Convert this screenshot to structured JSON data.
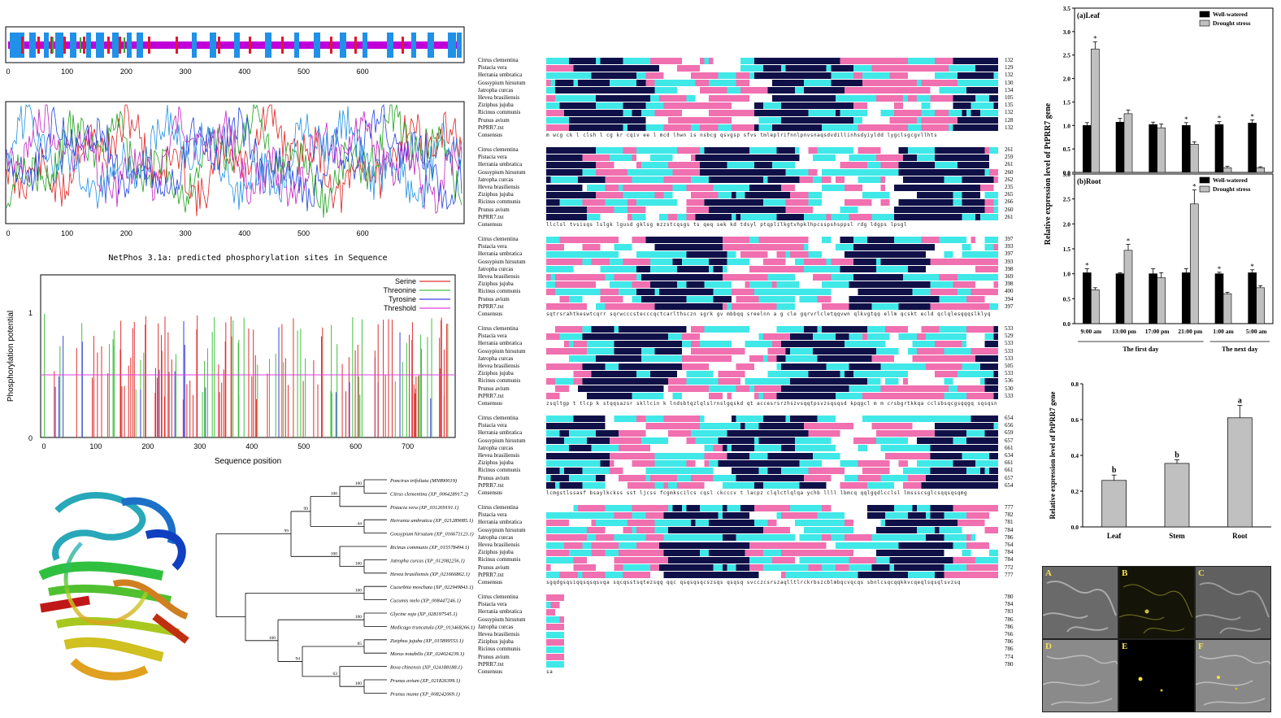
{
  "domain_map": {
    "ticks": [
      "0",
      "100",
      "200",
      "300",
      "400",
      "500",
      "600"
    ],
    "colors": {
      "track": "#c000d8",
      "blue": "#2090e8",
      "red": "#e01830",
      "green": "#40a040"
    }
  },
  "conservation_plot": {
    "ticks": [
      "0",
      "100",
      "200",
      "300",
      "400",
      "500",
      "600"
    ]
  },
  "netphos": {
    "title": "NetPhos 3.1a: predicted phosphorylation sites in Sequence",
    "xlabel": "Sequence position",
    "ylabel": "Phosphorylation potential",
    "y_ticks": [
      "0",
      "1"
    ],
    "x_ticks": [
      "0",
      "100",
      "200",
      "300",
      "400",
      "500",
      "600",
      "700"
    ],
    "legend": [
      {
        "label": "Serine",
        "color": "#e03030"
      },
      {
        "label": "Threonine",
        "color": "#40c040"
      },
      {
        "label": "Tyrosine",
        "color": "#4040e0"
      },
      {
        "label": "Threshold",
        "color": "#e040e0"
      }
    ],
    "threshold": 0.5
  },
  "alignment": {
    "species": [
      "Citrus clementina",
      "Pistacia vera",
      "Herrania umbratica",
      "Gossypium hirsutum",
      "Jatropha curcas",
      "Hevea brasiliensis",
      "Ziziphus jujuba",
      "Ricinus communis",
      "Prunus avium",
      "PtPRR7.txt"
    ],
    "consensus_label": "Consensus",
    "blocks": [
      {
        "nums": [
          "132",
          "129",
          "132",
          "130",
          "134",
          "105",
          "135",
          "132",
          "128",
          "132"
        ]
      },
      {
        "nums": [
          "261",
          "259",
          "261",
          "260",
          "262",
          "235",
          "265",
          "266",
          "260",
          "261"
        ]
      },
      {
        "nums": [
          "397",
          "393",
          "397",
          "393",
          "398",
          "369",
          "398",
          "400",
          "394",
          "397"
        ]
      },
      {
        "nums": [
          "533",
          "529",
          "533",
          "533",
          "533",
          "505",
          "533",
          "536",
          "530",
          "533"
        ]
      },
      {
        "nums": [
          "654",
          "656",
          "659",
          "657",
          "661",
          "634",
          "661",
          "661",
          "657",
          "654"
        ]
      },
      {
        "nums": [
          "777",
          "782",
          "781",
          "784",
          "786",
          "764",
          "784",
          "784",
          "772",
          "777"
        ]
      },
      {
        "nums": [
          "780",
          "784",
          "783",
          "786",
          "786",
          "766",
          "786",
          "786",
          "774",
          "780"
        ]
      }
    ],
    "consensus_strings": [
      "m wcg ck l clsh l cg kr cqiv ee   l mcd lhwn is nsbcg  qsvgsp sfvs tmleplrifnnlpnvsnaqsdvdillinhsdyiyldd lygclsgcgvllhts",
      "llclsl tvsisqs lslgk lgusd  gklsg  mzzstcqsgs ts qeq sek  kd tdsyl ptqplilkgtvhpklhpcsspshsppsl rdg ldgps  lpsgl",
      "sqtrsrahtkeswtcqrr sqrwcccstecccqctcarlthsczn sgrk  gv mbbqq sreelnn a g  cle gqrvrlcletqqvwn qlkvgtqq ellm qcskt ecld qclqlesqqqslklyq",
      "zsqltgp t  tlcp k stqqsazsr skllcin k lndsbtqzlqlslrnslgqskd qt  accesrsrzhszvsqqtpsvzsqsqsd kpqgcl m m  crsbgrtkkqa cclsbsqcgsqqgq sqsqsn",
      "lcmgstlssasf bsaylkckss sst    ljcss fcgmkscilcs cqsl ckcccv  t  lacpz  clqlctlqlqa ychb  llll lbmcq      qqlgqdlcclsl  lmssscsglcsqqsqsqmg",
      "sgqdgsqsiqqsqsqsvqa    sqcqsstsqtezsqq qqc   qsqsqsqcszsqs  qsqsq    svcczcsrszaqlltlrckrbszcblmbqcvqcqs sbnlcsqcqqkkvcqeqlsqsqlsvzsq",
      "sa"
    ]
  },
  "tree": {
    "taxa": [
      "Poncirus trifoliata (MN890019)",
      "Citrus clementina (XP_006428917.2)",
      "Pistacia vera (XP_031269191.1)",
      "Herrania umbratica (XP_021289085.1)",
      "Gossypium hirsutum (XP_016671123.1)",
      "Ricinus communis (XP_015578494.1)",
      "Jatropha curcas (XP_012082256.1)",
      "Hevea brasiliensis (XP_021666862.1)",
      "Cucurbita moschata (XP_022949843.1)",
      "Cucumis melo (XP_008447246.1)",
      "Glycine soja (XP_028197545.1)",
      "Medicago truncatula (XP_013468266.1)",
      "Ziziphus jujuba (XP_015899553.1)",
      "Morus notabilis (XP_024024239.1)",
      "Rosa chinensis (XP_024188188.1)",
      "Prunus avium (XP_021826399.1)",
      "Prunus mume (XP_008242069.1)"
    ],
    "bootstraps": [
      "100",
      "100",
      "44",
      "99",
      "100",
      "100",
      "99",
      "100",
      "100",
      "85",
      "100",
      "63",
      "94",
      "100",
      "100"
    ]
  },
  "chart_data": [
    {
      "type": "bar",
      "title": "(a)Leaf",
      "ylabel": "Relative expression level of PtPRR7 gene",
      "ylim": [
        0,
        3.5
      ],
      "yticks": [
        "0.0",
        "0.5",
        "1.0",
        "1.5",
        "2.0",
        "2.5",
        "3.0",
        "3.5"
      ],
      "categories": [
        "9:00 am",
        "13:00 pm",
        "17:00 pm",
        "21:00 pm",
        "1:00 am",
        "5:00 am"
      ],
      "series": [
        {
          "name": "Well-watered",
          "color": "#000000",
          "values": [
            1.0,
            1.07,
            1.02,
            1.0,
            1.02,
            1.05
          ],
          "errors": [
            0.06,
            0.08,
            0.05,
            0.06,
            0.06,
            0.07
          ]
        },
        {
          "name": "Drought stress",
          "color": "#c0c0c0",
          "values": [
            2.63,
            1.25,
            0.95,
            0.6,
            0.1,
            0.1
          ],
          "errors": [
            0.15,
            0.08,
            0.08,
            0.05,
            0.03,
            0.02
          ]
        }
      ],
      "stars_on": [
        [
          0,
          1
        ],
        [
          3,
          0
        ],
        [
          4,
          0
        ],
        [
          5,
          0
        ]
      ],
      "legend_position": "top-right"
    },
    {
      "type": "bar",
      "title": "(b)Root",
      "ylim": [
        0,
        3.0
      ],
      "yticks": [
        "0.0",
        "0.5",
        "1.0",
        "1.5",
        "2.0",
        "2.5",
        "3.0"
      ],
      "categories": [
        "9:00 am",
        "13:00 pm",
        "17:00 pm",
        "21:00 pm",
        "1:00 am",
        "5:00 am"
      ],
      "groups": [
        "The first day",
        "The next day"
      ],
      "series": [
        {
          "name": "Well-watered",
          "color": "#000000",
          "values": [
            1.02,
            1.0,
            1.0,
            1.02,
            1.0,
            1.02
          ],
          "errors": [
            0.08,
            0.02,
            0.1,
            0.08,
            0.03,
            0.06
          ]
        },
        {
          "name": "Drought stress",
          "color": "#c0c0c0",
          "values": [
            0.68,
            1.47,
            0.92,
            2.4,
            0.6,
            0.72
          ],
          "errors": [
            0.04,
            0.12,
            0.1,
            0.28,
            0.03,
            0.04
          ]
        }
      ],
      "stars_on": [
        [
          0,
          0
        ],
        [
          1,
          1
        ],
        [
          3,
          1
        ],
        [
          4,
          0
        ],
        [
          5,
          0
        ]
      ],
      "legend_position": "top-right"
    },
    {
      "type": "bar",
      "ylabel": "Relative expression level of PtPRR7 gene",
      "ylim": [
        0,
        0.8
      ],
      "yticks": [
        "0.0",
        "0.2",
        "0.4",
        "0.6",
        "0.8"
      ],
      "categories": [
        "Leaf",
        "Stem",
        "Root"
      ],
      "values": [
        0.26,
        0.355,
        0.61
      ],
      "errors": [
        0.03,
        0.02,
        0.07
      ],
      "letters": [
        "b",
        "b",
        "a"
      ],
      "color": "#c0c0c0"
    }
  ],
  "microscopy": {
    "labels": [
      "A",
      "B",
      "C",
      "D",
      "E",
      "F"
    ]
  }
}
